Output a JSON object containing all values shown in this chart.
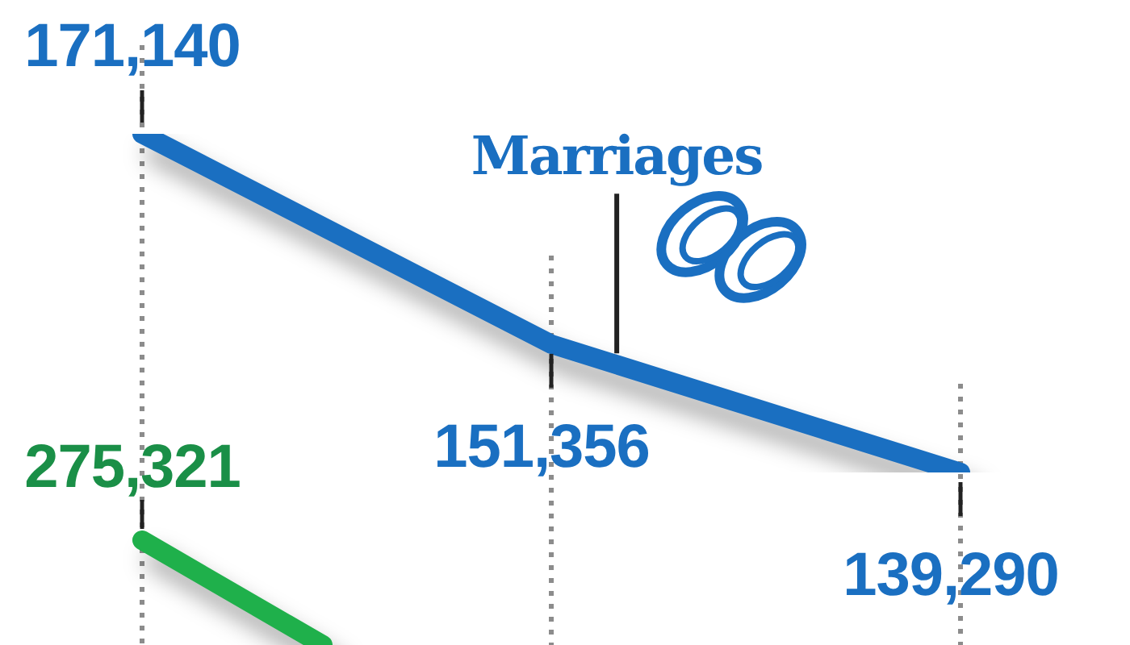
{
  "chart_data": {
    "type": "line",
    "categories": [
      null,
      null,
      null
    ],
    "series": [
      {
        "name": "Marriages",
        "color": "#1a6fc1",
        "values": [
          171140,
          151356,
          139290
        ],
        "value_labels": [
          "171,140",
          "151,356",
          "139,290"
        ]
      }
    ],
    "annotations": [
      "275,321"
    ],
    "grid": "x",
    "tick_labels": false,
    "line_style": "solid"
  }
}
